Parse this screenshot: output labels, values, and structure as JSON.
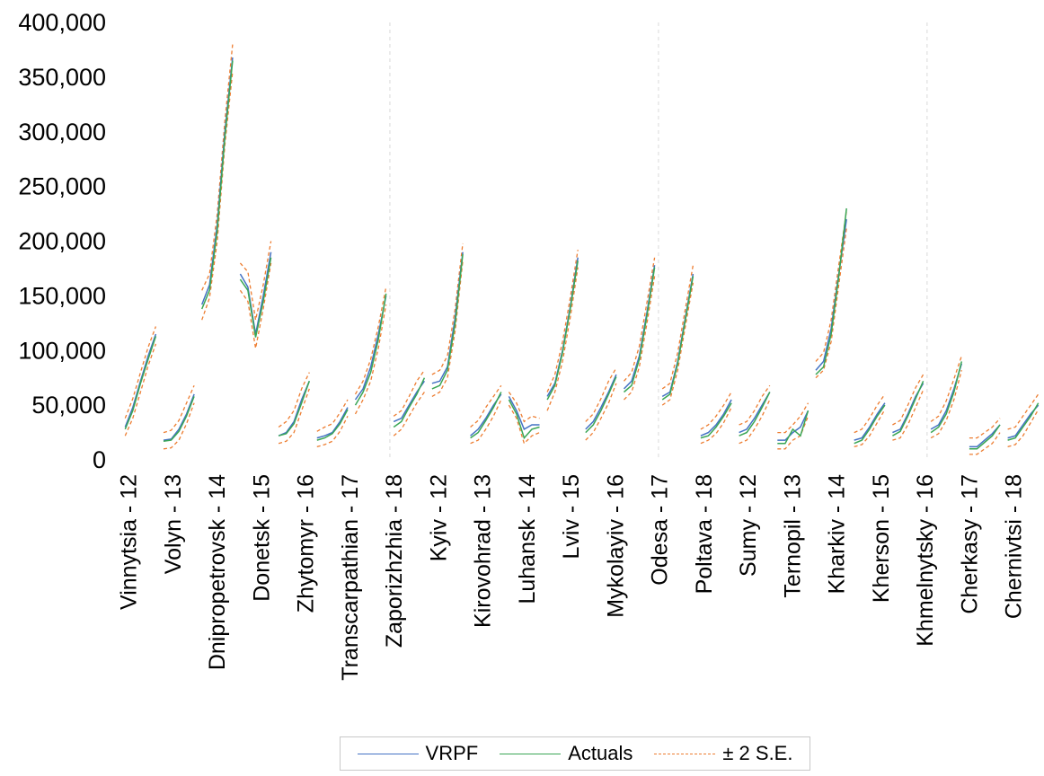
{
  "chart_data": {
    "type": "line",
    "title": "",
    "xlabel": "",
    "ylabel": "",
    "ylim": [
      0,
      400000
    ],
    "yticks": [
      "0",
      "50,000",
      "100,000",
      "150,000",
      "200,000",
      "250,000",
      "300,000",
      "350,000",
      "400,000"
    ],
    "ytick_values": [
      0,
      50000,
      100000,
      150000,
      200000,
      250000,
      300000,
      350000,
      400000
    ],
    "grid": "vertical dashed separators between region groups",
    "legend_position": "bottom",
    "colors": {
      "vrpf": "#4472c4",
      "actuals": "#3aa655",
      "se": "#ed7d31"
    },
    "legend": [
      {
        "key": "vrpf",
        "label": "VRPF"
      },
      {
        "key": "actuals",
        "label": "Actuals"
      },
      {
        "key": "se",
        "label": "± 2 S.E."
      }
    ],
    "categories": [
      "Vinnytsia - 12",
      "Volyn - 13",
      "Dnipropetrovsk - 14",
      "Donetsk - 15",
      "Zhytomyr - 16",
      "Transcarpathian - 17",
      "Zaporizhzhia - 18",
      "Kyiv - 12",
      "Kirovohrad - 13",
      "Luhansk - 14",
      "Lviv - 15",
      "Mykolayiv - 16",
      "Odesa - 17",
      "Poltava - 18",
      "Sumy - 12",
      "Ternopil - 13",
      "Kharkiv - 14",
      "Kherson - 15",
      "Khmelnytsky - 16",
      "Cherkasy - 17",
      "Chernivtsi - 18"
    ],
    "groups": [
      {
        "vrpf": [
          30000,
          48000,
          72000,
          95000,
          115000
        ],
        "actuals": [
          28000,
          45000,
          70000,
          92000,
          113000
        ],
        "upper": [
          38000,
          56000,
          80000,
          103000,
          122000
        ],
        "lower": [
          22000,
          38000,
          62000,
          86000,
          106000
        ]
      },
      {
        "vrpf": [
          18000,
          19000,
          28000,
          42000,
          60000
        ],
        "actuals": [
          17000,
          18000,
          26000,
          40000,
          58000
        ],
        "upper": [
          25000,
          27000,
          36000,
          52000,
          68000
        ],
        "lower": [
          10000,
          11000,
          18000,
          33000,
          52000
        ]
      },
      {
        "vrpf": [
          142000,
          160000,
          215000,
          300000,
          368000
        ],
        "actuals": [
          138000,
          155000,
          210000,
          295000,
          365000
        ],
        "upper": [
          155000,
          170000,
          225000,
          310000,
          380000
        ],
        "lower": [
          128000,
          148000,
          200000,
          288000,
          355000
        ]
      },
      {
        "vrpf": [
          170000,
          158000,
          115000,
          150000,
          190000
        ],
        "actuals": [
          165000,
          155000,
          112000,
          145000,
          185000
        ],
        "upper": [
          180000,
          172000,
          128000,
          160000,
          200000
        ],
        "lower": [
          155000,
          145000,
          102000,
          138000,
          180000
        ]
      },
      {
        "vrpf": [
          22000,
          25000,
          35000,
          55000,
          72000
        ],
        "actuals": [
          22000,
          24000,
          33000,
          52000,
          72000
        ],
        "upper": [
          30000,
          35000,
          45000,
          65000,
          80000
        ],
        "lower": [
          15000,
          17000,
          25000,
          45000,
          65000
        ]
      },
      {
        "vrpf": [
          20000,
          22000,
          25000,
          35000,
          48000
        ],
        "actuals": [
          18000,
          20000,
          24000,
          33000,
          46000
        ],
        "upper": [
          26000,
          30000,
          33000,
          43000,
          55000
        ],
        "lower": [
          12000,
          14000,
          17000,
          26000,
          40000
        ]
      },
      {
        "vrpf": [
          55000,
          65000,
          85000,
          115000,
          150000
        ],
        "actuals": [
          50000,
          62000,
          80000,
          110000,
          152000
        ],
        "upper": [
          60000,
          72000,
          92000,
          122000,
          158000
        ],
        "lower": [
          42000,
          55000,
          72000,
          102000,
          142000
        ]
      },
      {
        "vrpf": [
          35000,
          38000,
          50000,
          62000,
          72000
        ],
        "actuals": [
          30000,
          35000,
          48000,
          60000,
          75000
        ],
        "upper": [
          40000,
          45000,
          58000,
          72000,
          82000
        ],
        "lower": [
          22000,
          28000,
          40000,
          52000,
          62000
        ]
      },
      {
        "vrpf": [
          70000,
          72000,
          85000,
          130000,
          190000
        ],
        "actuals": [
          65000,
          68000,
          82000,
          125000,
          188000
        ],
        "upper": [
          78000,
          82000,
          95000,
          138000,
          198000
        ],
        "lower": [
          58000,
          62000,
          75000,
          118000,
          182000
        ]
      },
      {
        "vrpf": [
          22000,
          28000,
          38000,
          50000,
          60000
        ],
        "actuals": [
          20000,
          25000,
          36000,
          48000,
          62000
        ],
        "upper": [
          30000,
          36000,
          48000,
          58000,
          68000
        ],
        "lower": [
          15000,
          18000,
          28000,
          40000,
          55000
        ]
      },
      {
        "vrpf": [
          58000,
          45000,
          28000,
          32000,
          32000
        ],
        "actuals": [
          55000,
          42000,
          20000,
          28000,
          30000
        ],
        "upper": [
          62000,
          52000,
          35000,
          40000,
          38000
        ],
        "lower": [
          50000,
          38000,
          15000,
          22000,
          25000
        ]
      },
      {
        "vrpf": [
          58000,
          70000,
          100000,
          140000,
          185000
        ],
        "actuals": [
          55000,
          68000,
          98000,
          138000,
          182000
        ],
        "upper": [
          62000,
          78000,
          108000,
          148000,
          192000
        ],
        "lower": [
          45000,
          62000,
          90000,
          130000,
          176000
        ]
      },
      {
        "vrpf": [
          28000,
          35000,
          48000,
          62000,
          78000
        ],
        "actuals": [
          25000,
          32000,
          45000,
          60000,
          76000
        ],
        "upper": [
          35000,
          42000,
          56000,
          72000,
          84000
        ],
        "lower": [
          18000,
          25000,
          38000,
          52000,
          70000
        ]
      },
      {
        "vrpf": [
          65000,
          72000,
          95000,
          135000,
          178000
        ],
        "actuals": [
          62000,
          68000,
          92000,
          132000,
          176000
        ],
        "upper": [
          72000,
          80000,
          104000,
          144000,
          185000
        ],
        "lower": [
          55000,
          62000,
          85000,
          125000,
          168000
        ]
      },
      {
        "vrpf": [
          58000,
          62000,
          90000,
          130000,
          170000
        ],
        "actuals": [
          55000,
          60000,
          88000,
          128000,
          168000
        ],
        "upper": [
          65000,
          70000,
          98000,
          138000,
          178000
        ],
        "lower": [
          50000,
          55000,
          82000,
          122000,
          162000
        ]
      },
      {
        "vrpf": [
          22000,
          25000,
          32000,
          42000,
          55000
        ],
        "actuals": [
          20000,
          22000,
          30000,
          40000,
          52000
        ],
        "upper": [
          28000,
          32000,
          40000,
          50000,
          62000
        ],
        "lower": [
          15000,
          18000,
          24000,
          34000,
          48000
        ]
      },
      {
        "vrpf": [
          25000,
          28000,
          38000,
          50000,
          62000
        ],
        "actuals": [
          22000,
          25000,
          35000,
          48000,
          62000
        ],
        "upper": [
          32000,
          35000,
          45000,
          58000,
          68000
        ],
        "lower": [
          15000,
          18000,
          28000,
          40000,
          55000
        ]
      },
      {
        "vrpf": [
          18000,
          18000,
          25000,
          30000,
          45000
        ],
        "actuals": [
          15000,
          15000,
          28000,
          22000,
          45000
        ],
        "upper": [
          25000,
          25000,
          32000,
          40000,
          52000
        ],
        "lower": [
          10000,
          10000,
          18000,
          22000,
          40000
        ]
      },
      {
        "vrpf": [
          82000,
          90000,
          120000,
          170000,
          220000
        ],
        "actuals": [
          78000,
          85000,
          115000,
          168000,
          230000
        ],
        "upper": [
          90000,
          98000,
          128000,
          178000,
          228000
        ],
        "lower": [
          75000,
          82000,
          108000,
          160000,
          212000
        ]
      },
      {
        "vrpf": [
          18000,
          20000,
          30000,
          42000,
          52000
        ],
        "actuals": [
          15000,
          18000,
          28000,
          40000,
          50000
        ],
        "upper": [
          25000,
          28000,
          38000,
          50000,
          60000
        ],
        "lower": [
          12000,
          14000,
          22000,
          34000,
          46000
        ]
      },
      {
        "vrpf": [
          25000,
          28000,
          42000,
          58000,
          70000
        ],
        "actuals": [
          22000,
          26000,
          40000,
          56000,
          72000
        ],
        "upper": [
          32000,
          36000,
          50000,
          66000,
          78000
        ],
        "lower": [
          18000,
          20000,
          32000,
          48000,
          64000
        ]
      },
      {
        "vrpf": [
          28000,
          32000,
          45000,
          65000,
          88000
        ],
        "actuals": [
          25000,
          30000,
          42000,
          62000,
          90000
        ],
        "upper": [
          35000,
          40000,
          54000,
          74000,
          95000
        ],
        "lower": [
          20000,
          24000,
          36000,
          55000,
          82000
        ]
      },
      {
        "vrpf": [
          12000,
          12000,
          18000,
          24000,
          32000
        ],
        "actuals": [
          10000,
          10000,
          16000,
          22000,
          32000
        ],
        "upper": [
          20000,
          20000,
          25000,
          30000,
          38000
        ],
        "lower": [
          5000,
          5000,
          10000,
          15000,
          25000
        ]
      },
      {
        "vrpf": [
          20000,
          22000,
          32000,
          42000,
          50000
        ],
        "actuals": [
          18000,
          20000,
          30000,
          40000,
          52000
        ],
        "upper": [
          28000,
          30000,
          40000,
          50000,
          60000
        ],
        "lower": [
          12000,
          14000,
          22000,
          34000,
          46000
        ]
      }
    ]
  }
}
